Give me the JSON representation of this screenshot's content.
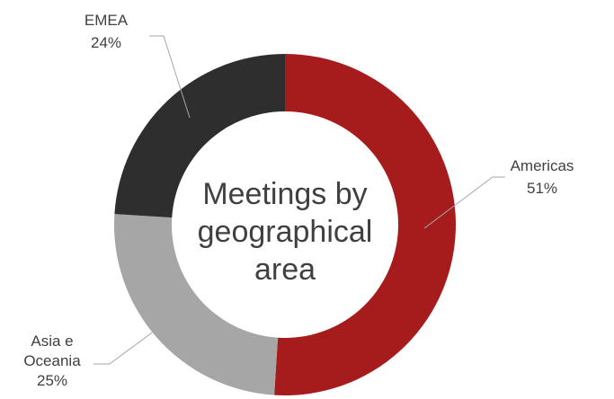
{
  "chart_data": {
    "type": "pie",
    "title": "Meetings by geographical area",
    "categories": [
      "Americas",
      "Asia e Oceania",
      "EMEA"
    ],
    "values": [
      51,
      25,
      24
    ],
    "unit": "%",
    "colors": [
      "#a61c1c",
      "#a6a6a6",
      "#2e2e2e"
    ],
    "data_labels": [
      {
        "lines": [
          "Americas",
          "51%"
        ]
      },
      {
        "lines": [
          "Asia e",
          "Oceania",
          "25%"
        ]
      },
      {
        "lines": [
          "EMEA",
          "24%"
        ]
      }
    ],
    "center_label_lines": [
      "Meetings by",
      "geographical",
      "area"
    ],
    "legend": "none"
  }
}
